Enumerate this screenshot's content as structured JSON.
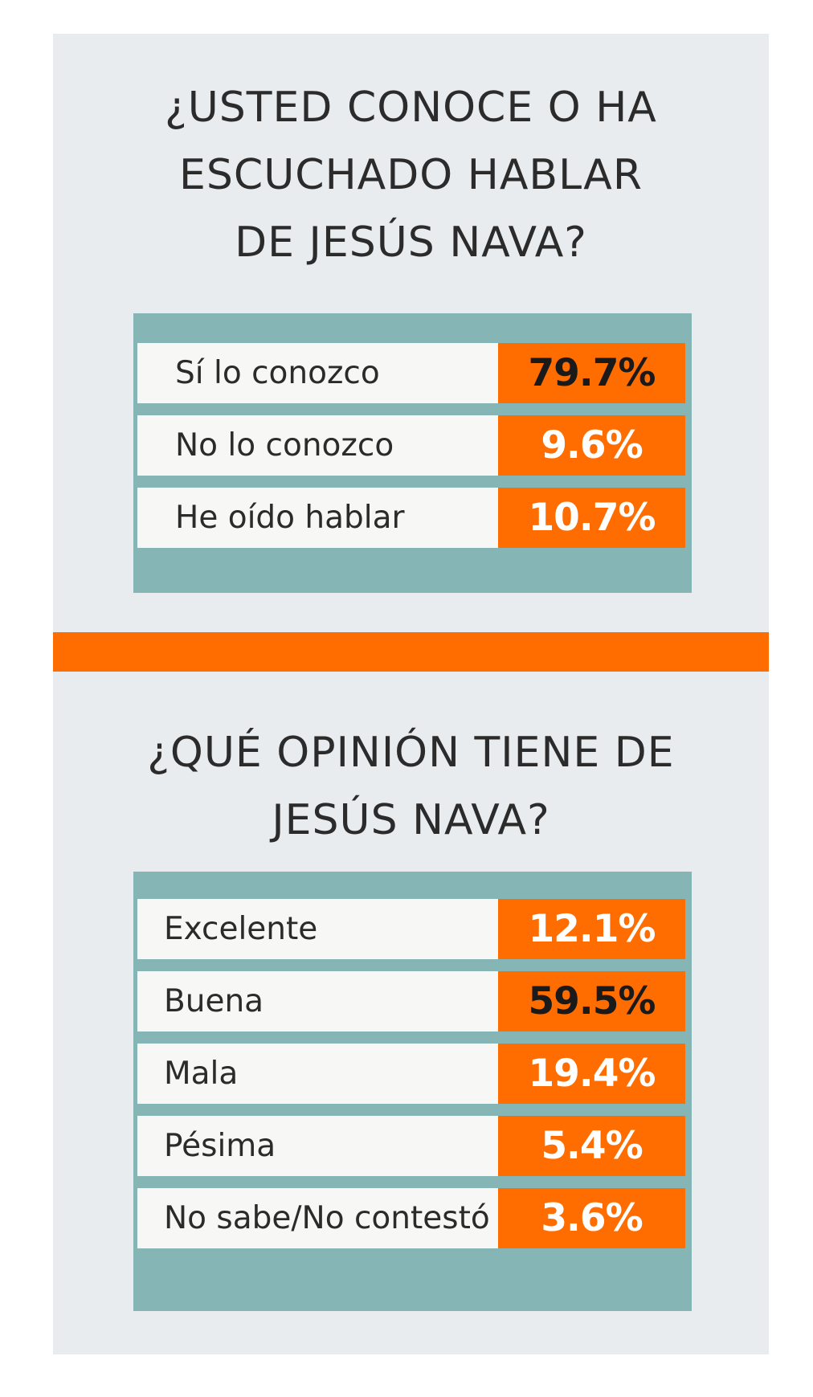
{
  "colors": {
    "panel_background": "#e9ecee",
    "accent_orange": "#ff6d00",
    "table_frame_teal": "#86b5b6",
    "row_background": "#f7f7f6",
    "highlight_text": "#1a1a1a",
    "value_text": "#ffffff",
    "title_text": "#2b2b2b"
  },
  "chart_data": [
    {
      "type": "table",
      "title_lines": [
        "¿USTED CONOCE O HA",
        "ESCUCHADO HABLAR",
        "DE JESÚS NAVA?"
      ],
      "unit": "%",
      "rows": [
        {
          "label": "Sí lo conozco",
          "value": 79.7,
          "display": "79.7%",
          "highlight": true
        },
        {
          "label": "No lo conozco",
          "value": 9.6,
          "display": "9.6%",
          "highlight": false
        },
        {
          "label": "He oído hablar",
          "value": 10.7,
          "display": "10.7%",
          "highlight": false
        }
      ]
    },
    {
      "type": "table",
      "title_lines": [
        "¿QUÉ OPINIÓN TIENE DE",
        "JESÚS NAVA?"
      ],
      "unit": "%",
      "rows": [
        {
          "label": "Excelente",
          "value": 12.1,
          "display": "12.1%",
          "highlight": false
        },
        {
          "label": "Buena",
          "value": 59.5,
          "display": "59.5%",
          "highlight": true
        },
        {
          "label": "Mala",
          "value": 19.4,
          "display": "19.4%",
          "highlight": false
        },
        {
          "label": "Pésima",
          "value": 5.4,
          "display": "5.4%",
          "highlight": false
        },
        {
          "label": "No sabe/No contestó",
          "value": 3.6,
          "display": "3.6%",
          "highlight": false
        }
      ]
    }
  ]
}
